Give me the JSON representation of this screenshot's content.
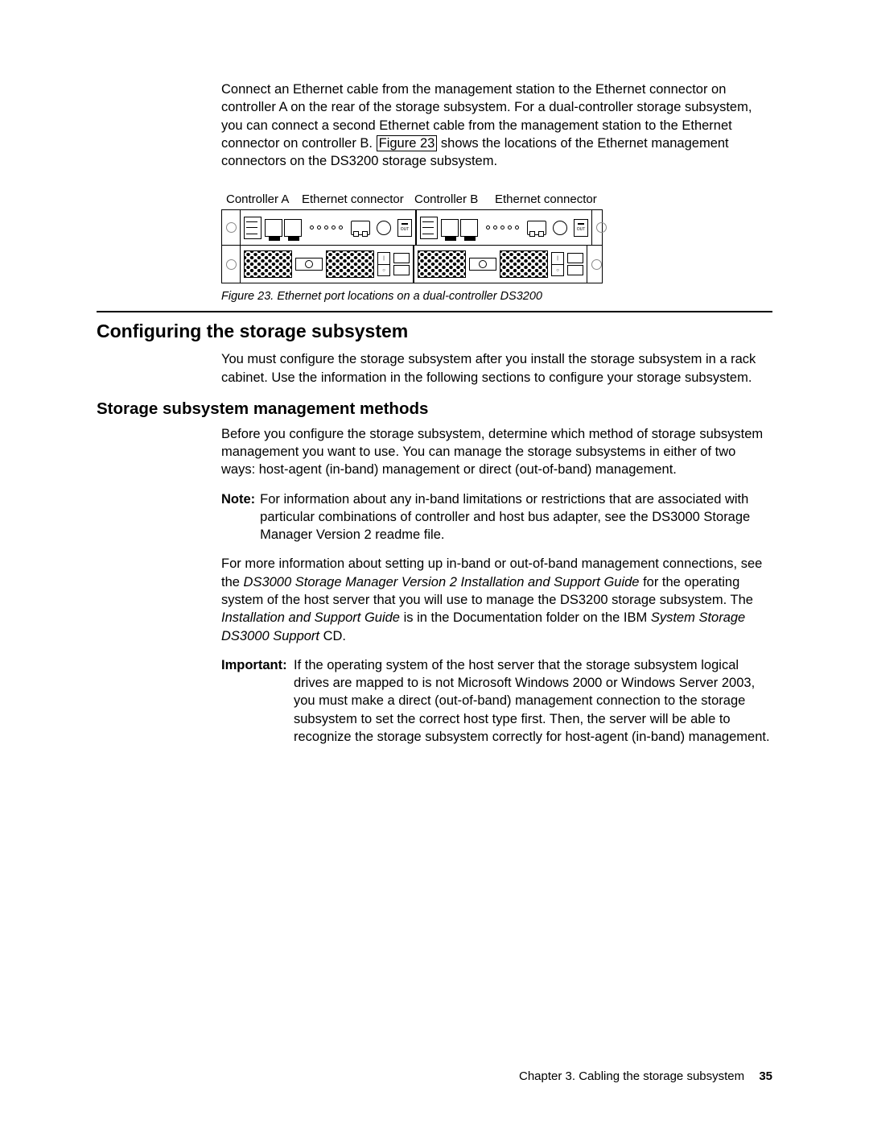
{
  "intro": {
    "p1a": "Connect an Ethernet cable from the management station to the Ethernet connector on controller A on the rear of the storage subsystem. For a dual-controller storage subsystem, you can connect a second Ethernet cable from the management station to the Ethernet connector on controller B. ",
    "fig_link": "Figure 23",
    "p1b": " shows the locations of the Ethernet management connectors on the DS3200 storage subsystem."
  },
  "diagram": {
    "labels": {
      "ctrl_a": "Controller A",
      "eth1": "Ethernet connector",
      "ctrl_b": "Controller B",
      "eth2": "Ethernet connector"
    },
    "out_label": "OUT",
    "caption": "Figure 23. Ethernet port locations on a dual-controller DS3200"
  },
  "h1": "Configuring the storage subsystem",
  "config_para": "You must configure the storage subsystem after you install the storage subsystem in a rack cabinet. Use the information in the following sections to configure your storage subsystem.",
  "h2": "Storage subsystem management methods",
  "methods_para": "Before you configure the storage subsystem, determine which method of storage subsystem management you want to use. You can manage the storage subsystems in either of two ways: host-agent (in-band) management or direct (out-of-band) management.",
  "note": {
    "label": "Note:",
    "text": "For information about any in-band limitations or restrictions that are associated with particular combinations of controller and host bus adapter, see the DS3000 Storage Manager Version 2 readme file."
  },
  "para3": {
    "a": "For more information about setting up in-band or out-of-band management connections, see the ",
    "i1": "DS3000 Storage Manager Version 2 Installation and Support Guide",
    "b": " for the operating system of the host server that you will use to manage the DS3200 storage subsystem. The ",
    "i2": "Installation and Support Guide",
    "c": " is in the Documentation folder on the IBM ",
    "i3": "System Storage DS3000 Support",
    "d": " CD."
  },
  "important": {
    "label": "Important:",
    "text": "If the operating system of the host server that the storage subsystem logical drives are mapped to is not Microsoft Windows 2000 or Windows Server 2003, you must make a direct (out-of-band) management connection to the storage subsystem to set the correct host type first. Then, the server will be able to recognize the storage subsystem correctly for host-agent (in-band) management."
  },
  "footer": {
    "chapter": "Chapter 3. Cabling the storage subsystem",
    "page": "35"
  },
  "colors": {
    "text": "#000000",
    "bg": "#ffffff"
  }
}
